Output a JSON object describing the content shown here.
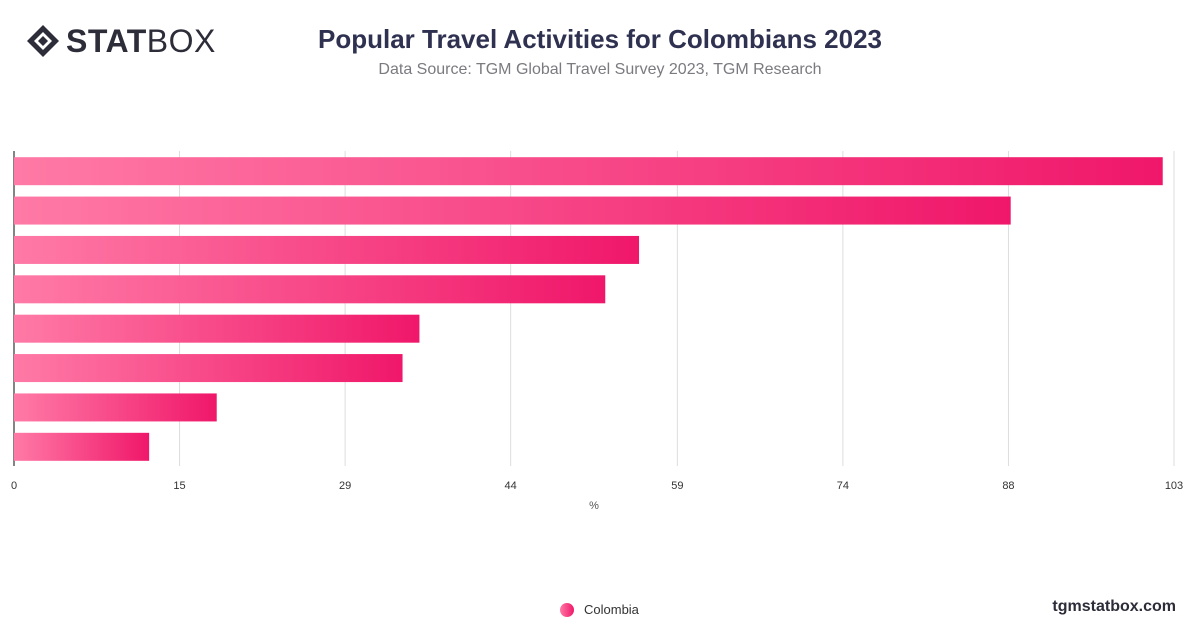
{
  "header": {
    "logo_bold": "STAT",
    "logo_light": "BOX",
    "title": "Popular Travel Activities for Colombians 2023",
    "subtitle": "Data Source: TGM Global Travel Survey 2023, TGM Research"
  },
  "colors": {
    "bar_start": "#ff7aa6",
    "bar_end": "#f0176a",
    "grid": "#dddddd",
    "axis": "#333333"
  },
  "chart_data": {
    "type": "bar",
    "orientation": "horizontal",
    "title": "Popular Travel Activities for Colombians 2023",
    "subtitle": "Data Source: TGM Global Travel Survey 2023, TGM Research",
    "xlabel": "%",
    "ylabel": "",
    "xlim": [
      0,
      103
    ],
    "x_ticks": [
      "0",
      "15",
      "29",
      "44",
      "59",
      "74",
      "88",
      "103"
    ],
    "x_tick_values": [
      0,
      14.7,
      29.4,
      44.1,
      58.9,
      73.6,
      88.3,
      103
    ],
    "series": [
      {
        "name": "Colombia",
        "values": [
          102,
          88.5,
          55.5,
          52.5,
          36,
          34.5,
          18,
          12
        ]
      }
    ],
    "grid": true,
    "legend_position": "bottom-center"
  },
  "legend": {
    "items": [
      {
        "label": "Colombia"
      }
    ]
  },
  "footer": {
    "site": "tgmstatbox.com"
  }
}
